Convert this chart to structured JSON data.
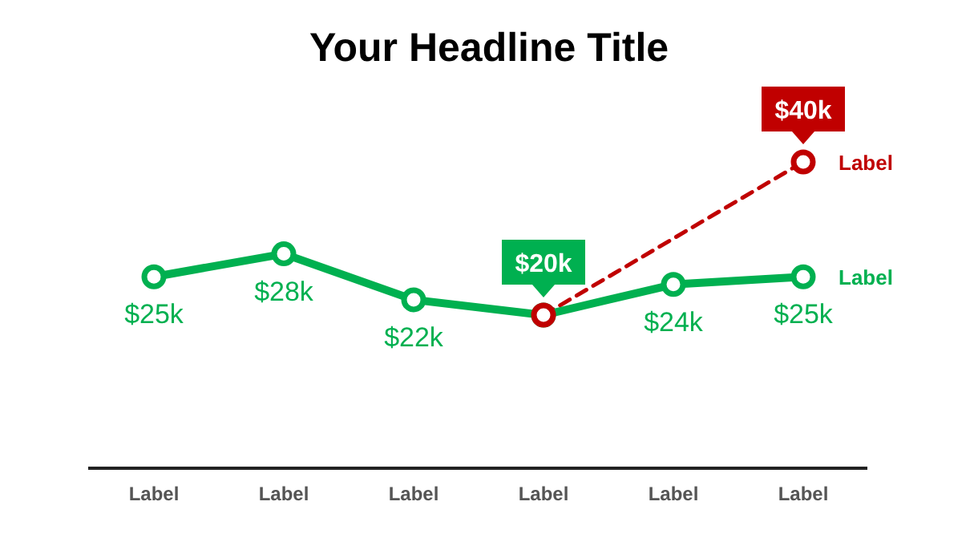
{
  "chart_data": {
    "type": "line",
    "title": "Your Headline Title",
    "categories": [
      "Label",
      "Label",
      "Label",
      "Label",
      "Label",
      "Label"
    ],
    "tick_labels": "x",
    "legend": "right",
    "marker": "circle",
    "series": [
      {
        "name": "Label",
        "color": "#00b050",
        "values": [
          25,
          28,
          22,
          20,
          24,
          25
        ],
        "line_style": "solid",
        "value_labels": [
          "$25k",
          "$28k",
          "$22k",
          null,
          "$24k",
          "$25k"
        ]
      },
      {
        "name": "Label",
        "color": "#c00000",
        "values": [
          null,
          null,
          null,
          20,
          null,
          40
        ],
        "line_style": "dashed",
        "value_labels": [
          null,
          null,
          null,
          "$20k",
          null,
          "$40k"
        ]
      }
    ]
  }
}
